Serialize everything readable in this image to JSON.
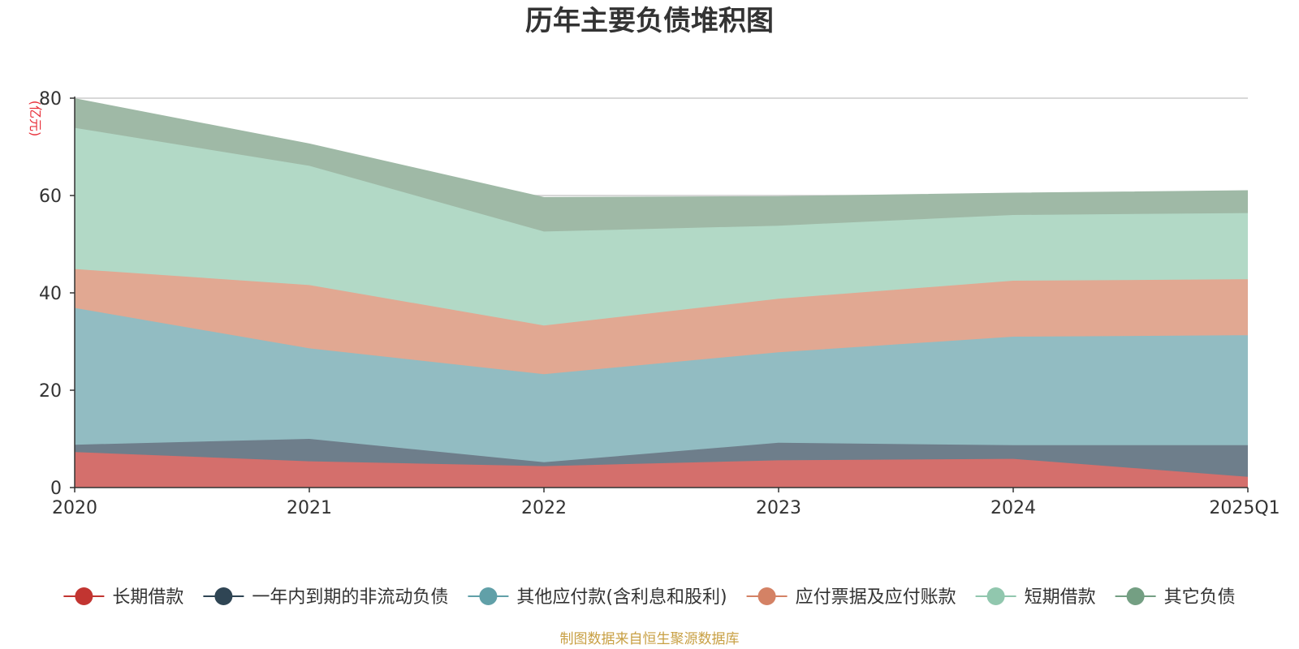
{
  "chart_data": {
    "type": "area",
    "stacked": true,
    "title": "历年主要负债堆积图",
    "unit_label": "(亿元)",
    "categories": [
      "2020",
      "2021",
      "2022",
      "2023",
      "2024",
      "2025Q1"
    ],
    "ylim": [
      0,
      80
    ],
    "yticks": [
      "0",
      "20",
      "40",
      "60",
      "80"
    ],
    "grid": true,
    "legend_position": "bottom",
    "series": [
      {
        "name": "长期借款",
        "values": [
          7.3,
          5.4,
          4.4,
          5.6,
          5.9,
          2.2
        ],
        "color": "#d46f6c",
        "marker": "#c23531"
      },
      {
        "name": "一年内到期的非流动负债",
        "values": [
          1.5,
          4.6,
          0.8,
          3.6,
          2.8,
          6.5
        ],
        "color": "#6e7e8b",
        "marker": "#2f4554"
      },
      {
        "name": "其他应付款(含利息和股利)",
        "values": [
          28.1,
          18.6,
          18.1,
          18.6,
          22.3,
          22.6
        ],
        "color": "#92bcc2",
        "marker": "#61a0a8"
      },
      {
        "name": "应付票据及应付账款",
        "values": [
          8.0,
          13.0,
          10.0,
          11.0,
          11.5,
          11.5
        ],
        "color": "#e1a892",
        "marker": "#d48265"
      },
      {
        "name": "短期借款",
        "values": [
          29.0,
          24.5,
          19.3,
          15.0,
          13.5,
          13.6
        ],
        "color": "#b2d9c6",
        "marker": "#91c7ae"
      },
      {
        "name": "其它负债",
        "values": [
          6.0,
          4.5,
          7.0,
          6.0,
          4.5,
          4.6
        ],
        "color": "#9fb9a6",
        "marker": "#749f83"
      }
    ]
  },
  "source_text": "制图数据来自恒生聚源数据库"
}
